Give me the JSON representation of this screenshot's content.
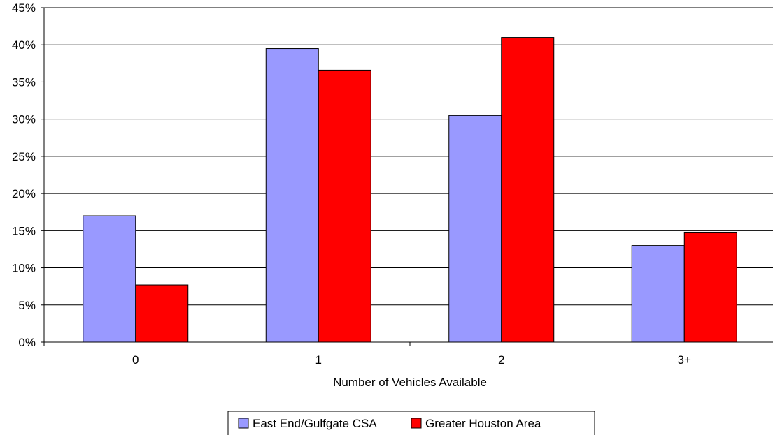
{
  "chart_data": {
    "type": "bar",
    "categories": [
      "0",
      "1",
      "2",
      "3+"
    ],
    "series": [
      {
        "name": "East End/Gulfgate CSA",
        "values": [
          17.0,
          39.5,
          30.5,
          13.0
        ],
        "color": "#9999ff"
      },
      {
        "name": "Greater Houston Area",
        "values": [
          7.7,
          36.6,
          41.0,
          14.8
        ],
        "color": "#ff0000"
      }
    ],
    "xlabel": "Number of Vehicles Available",
    "ylabel": "",
    "ylim": [
      0,
      45
    ],
    "ytick_step": 5,
    "ytick_format": "percent",
    "grid": true,
    "legend_position": "bottom"
  }
}
